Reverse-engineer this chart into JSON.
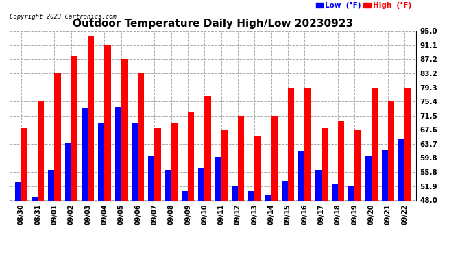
{
  "title": "Outdoor Temperature Daily High/Low 20230923",
  "copyright": "Copyright 2023 Cartronics.com",
  "legend_low": "Low  (°F)",
  "legend_high": "High  (°F)",
  "low_color": "#0000ff",
  "high_color": "#ff0000",
  "background_color": "#ffffff",
  "grid_color": "#aaaaaa",
  "yticks": [
    48.0,
    51.9,
    55.8,
    59.8,
    63.7,
    67.6,
    71.5,
    75.4,
    79.3,
    83.2,
    87.2,
    91.1,
    95.0
  ],
  "ylim": [
    48.0,
    95.0
  ],
  "dates": [
    "08/30",
    "08/31",
    "09/01",
    "09/02",
    "09/03",
    "09/04",
    "09/05",
    "09/06",
    "09/07",
    "09/08",
    "09/09",
    "09/10",
    "09/11",
    "09/12",
    "09/13",
    "09/14",
    "09/15",
    "09/16",
    "09/17",
    "09/18",
    "09/19",
    "09/20",
    "09/21",
    "09/22"
  ],
  "highs": [
    68.0,
    75.4,
    83.2,
    88.0,
    93.5,
    91.0,
    87.2,
    83.2,
    68.0,
    69.5,
    72.5,
    77.0,
    67.6,
    71.5,
    66.0,
    71.5,
    79.3,
    79.0,
    68.0,
    70.0,
    67.6,
    79.3,
    75.4,
    79.3
  ],
  "lows": [
    53.0,
    49.0,
    56.5,
    64.0,
    73.5,
    69.5,
    74.0,
    69.5,
    60.5,
    56.5,
    50.5,
    57.0,
    60.0,
    52.0,
    50.5,
    49.5,
    53.5,
    61.5,
    56.5,
    52.5,
    52.0,
    60.5,
    62.0,
    65.0
  ]
}
